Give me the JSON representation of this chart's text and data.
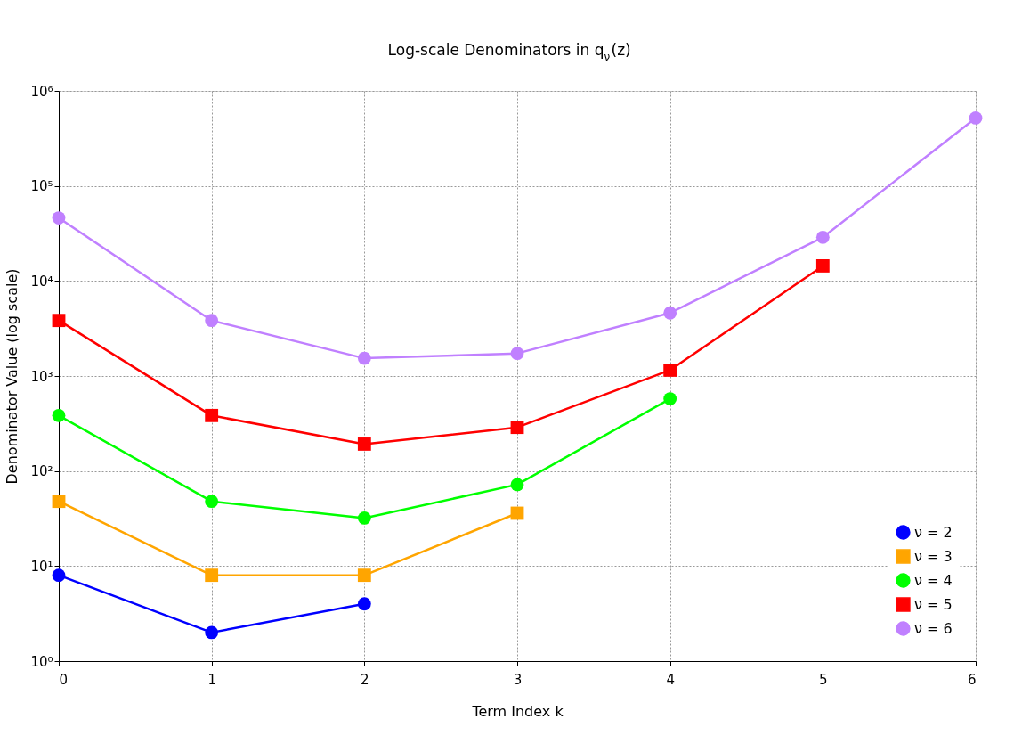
{
  "chart_data": {
    "type": "line",
    "title": "Log-scale Denominators in q$_{ν}$(z)",
    "xlabel": "Term Index k",
    "ylabel": "Denominator Value (log scale)",
    "x": [
      0,
      1,
      2,
      3,
      4,
      5,
      6
    ],
    "xlim": [
      0,
      6
    ],
    "xticks": [
      {
        "value": 0,
        "label": "0"
      },
      {
        "value": 1,
        "label": "1"
      },
      {
        "value": 2,
        "label": "2"
      },
      {
        "value": 3,
        "label": "3"
      },
      {
        "value": 4,
        "label": "4"
      },
      {
        "value": 5,
        "label": "5"
      },
      {
        "value": 6,
        "label": "6"
      }
    ],
    "ylim": [
      1,
      1000000
    ],
    "yticks": [
      {
        "value": 1,
        "label": "10⁰"
      },
      {
        "value": 10,
        "label": "10¹"
      },
      {
        "value": 100,
        "label": "10²"
      },
      {
        "value": 1000,
        "label": "10³"
      },
      {
        "value": 10000,
        "label": "10⁴"
      },
      {
        "value": 100000,
        "label": "10⁵"
      },
      {
        "value": 1000000,
        "label": "10⁶"
      }
    ],
    "log": "y",
    "grid": true,
    "legend": "bottom right",
    "line_style": "solid",
    "series": [
      {
        "name": "ν = 2",
        "color": "#0000ff",
        "marker": "circle",
        "values": [
          8,
          2,
          4,
          null,
          null,
          null,
          null
        ]
      },
      {
        "name": "ν = 3",
        "color": "#ffa500",
        "marker": "square",
        "values": [
          48,
          8,
          8,
          36,
          null,
          null,
          null
        ]
      },
      {
        "name": "ν = 4",
        "color": "#00ff00",
        "marker": "circle",
        "values": [
          384,
          48,
          32,
          72,
          576,
          null,
          null
        ]
      },
      {
        "name": "ν = 5",
        "color": "#ff0000",
        "marker": "square",
        "values": [
          3840,
          384,
          192,
          288,
          1152,
          14400,
          null
        ]
      },
      {
        "name": "ν = 6",
        "color": "#c080ff",
        "marker": "circle",
        "values": [
          46080,
          3840,
          1536,
          1728,
          4608,
          28800,
          518400
        ]
      }
    ]
  }
}
